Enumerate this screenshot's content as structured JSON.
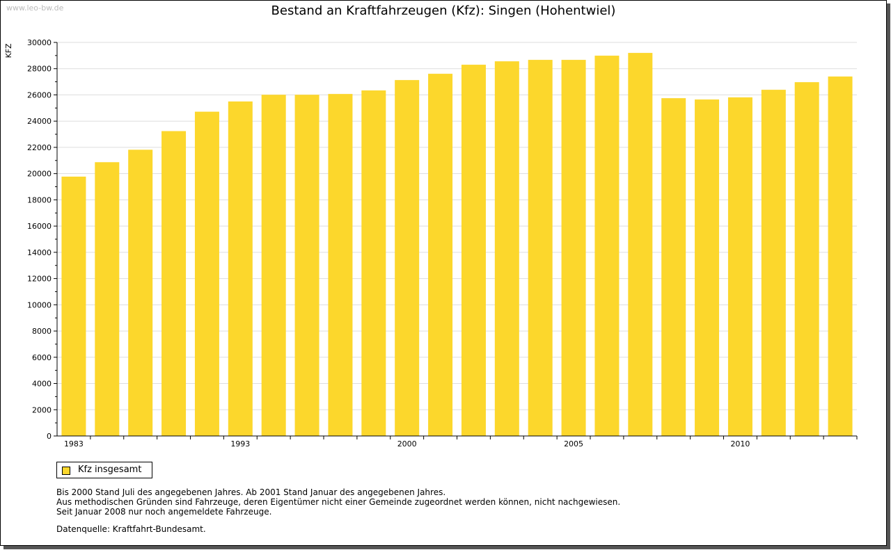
{
  "watermark": "www.leo-bw.de",
  "notes": [
    "Bis 2000 Stand Juli des angegebenen Jahres. Ab 2001 Stand Januar des angegebenen Jahres.",
    "Aus methodischen Gründen sind Fahrzeuge, deren Eigentümer nicht einer Gemeinde zugeordnet werden können, nicht nachgewiesen.",
    "Seit Januar 2008 nur noch angemeldete Fahrzeuge."
  ],
  "source": "Datenquelle: Kraftfahrt-Bundesamt.",
  "chart_data": {
    "type": "bar",
    "title": "Bestand an Kraftfahrzeugen (Kfz): Singen (Hohentwiel)",
    "xlabel": "",
    "ylabel": "KFZ",
    "ylim": [
      0,
      30000
    ],
    "yticks": [
      0,
      2000,
      4000,
      6000,
      8000,
      10000,
      12000,
      14000,
      16000,
      18000,
      20000,
      22000,
      24000,
      26000,
      28000,
      30000
    ],
    "categories": [
      "1983",
      "",
      "",
      "",
      "",
      "1993",
      "",
      "",
      "",
      "",
      "2000",
      "",
      "",
      "",
      "",
      "2005",
      "",
      "",
      "",
      "",
      "2010",
      "",
      "",
      ""
    ],
    "series": [
      {
        "name": "Kfz insgesamt",
        "color": "#fcd72c",
        "values": [
          19770,
          20870,
          21820,
          23240,
          24720,
          25500,
          26010,
          26010,
          26070,
          26340,
          27130,
          27610,
          28300,
          28560,
          28670,
          28670,
          28990,
          29200,
          25750,
          25650,
          25810,
          26390,
          26970,
          27400
        ]
      }
    ],
    "grid": true,
    "legend": "bottom-left"
  }
}
